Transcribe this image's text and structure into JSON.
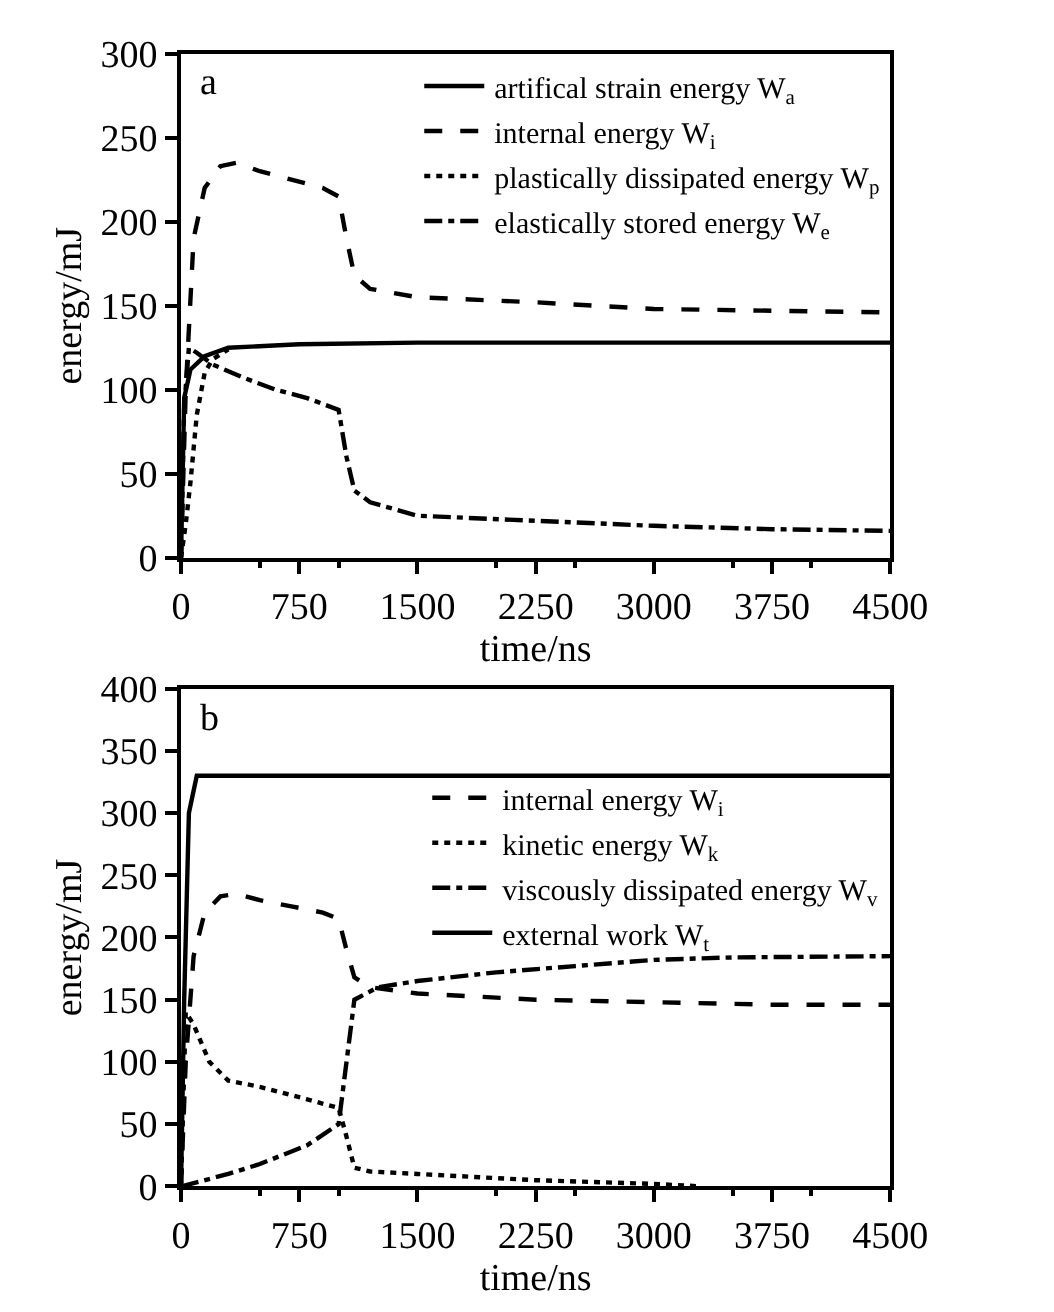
{
  "chart_data": [
    {
      "type": "line",
      "xlabel": "time/ns",
      "ylabel": "energy/mJ",
      "annotations": [
        "a"
      ],
      "xlim": [
        0,
        4500
      ],
      "xticks": [
        0,
        750,
        1500,
        2250,
        3000,
        3750,
        4500
      ],
      "ylim": [
        0,
        300
      ],
      "yticks": [
        0,
        50,
        100,
        150,
        200,
        250,
        300
      ],
      "legend": "top right",
      "marker": "none",
      "series": [
        {
          "name": "artifical strain energy W$_{a}$",
          "color": "#000000",
          "line_style": "solid",
          "x": [
            0,
            20,
            60,
            150,
            300,
            750,
            1500,
            2250,
            3000,
            3750,
            4500
          ],
          "values": [
            0,
            95,
            112,
            120,
            125,
            127,
            128,
            128,
            128,
            128,
            128
          ]
        },
        {
          "name": "internal energy W$_{i}$",
          "color": "#000000",
          "line_style": "dashed",
          "x": [
            0,
            30,
            80,
            150,
            250,
            350,
            500,
            700,
            900,
            1000,
            1050,
            1100,
            1200,
            1500,
            2250,
            3000,
            3750,
            4500
          ],
          "values": [
            0,
            100,
            190,
            220,
            233,
            235,
            230,
            225,
            220,
            215,
            190,
            168,
            160,
            155,
            152,
            148,
            147,
            146
          ]
        },
        {
          "name": "plastically dissipated energy W$_{p}$",
          "color": "#000000",
          "line_style": "dotted",
          "x": [
            0,
            30,
            60,
            100,
            150,
            200,
            300
          ],
          "values": [
            0,
            20,
            45,
            85,
            110,
            118,
            124
          ]
        },
        {
          "name": "elastically stored energy W$_{e}$",
          "color": "#000000",
          "line_style": "dashdot",
          "x": [
            0,
            20,
            50,
            100,
            200,
            400,
            600,
            800,
            1000,
            1050,
            1100,
            1200,
            1500,
            2250,
            3000,
            3750,
            4500
          ],
          "values": [
            0,
            90,
            125,
            122,
            115,
            107,
            100,
            95,
            88,
            60,
            40,
            33,
            25,
            22,
            19,
            17,
            16
          ]
        }
      ]
    },
    {
      "type": "line",
      "xlabel": "time/ns",
      "ylabel": "energy/mJ",
      "annotations": [
        "b"
      ],
      "xlim": [
        0,
        4500
      ],
      "xticks": [
        0,
        750,
        1500,
        2250,
        3000,
        3750,
        4500
      ],
      "ylim": [
        0,
        400
      ],
      "yticks": [
        0,
        50,
        100,
        150,
        200,
        250,
        300,
        350,
        400
      ],
      "legend": "right",
      "marker": "none",
      "series": [
        {
          "name": "internal energy W$_{i}$",
          "color": "#000000",
          "line_style": "dashed",
          "x": [
            0,
            30,
            80,
            150,
            250,
            350,
            500,
            700,
            900,
            1000,
            1050,
            1100,
            1200,
            1500,
            2250,
            3000,
            3750,
            4500
          ],
          "values": [
            0,
            100,
            185,
            220,
            233,
            235,
            230,
            225,
            220,
            215,
            190,
            168,
            160,
            155,
            150,
            148,
            146,
            146
          ]
        },
        {
          "name": "kinetic energy W$_{k}$",
          "color": "#000000",
          "line_style": "dotted",
          "x": [
            0,
            30,
            80,
            180,
            300,
            500,
            800,
            1000,
            1050,
            1100,
            1200,
            1500,
            2250,
            3000,
            3300
          ],
          "values": [
            0,
            140,
            130,
            100,
            85,
            80,
            70,
            63,
            40,
            15,
            12,
            10,
            5,
            2,
            0
          ]
        },
        {
          "name": "viscously dissipated energy W$_{v}$",
          "color": "#000000",
          "line_style": "dashdot",
          "x": [
            0,
            300,
            500,
            800,
            1000,
            1050,
            1100,
            1250,
            1500,
            2000,
            2500,
            3000,
            3500,
            4500
          ],
          "values": [
            0,
            10,
            18,
            33,
            50,
            100,
            150,
            160,
            165,
            172,
            177,
            182,
            184,
            185
          ]
        },
        {
          "name": "external work W$_{t}$",
          "color": "#000000",
          "line_style": "solid",
          "x": [
            0,
            20,
            50,
            100,
            4500
          ],
          "values": [
            0,
            150,
            300,
            330,
            330
          ]
        }
      ]
    }
  ]
}
